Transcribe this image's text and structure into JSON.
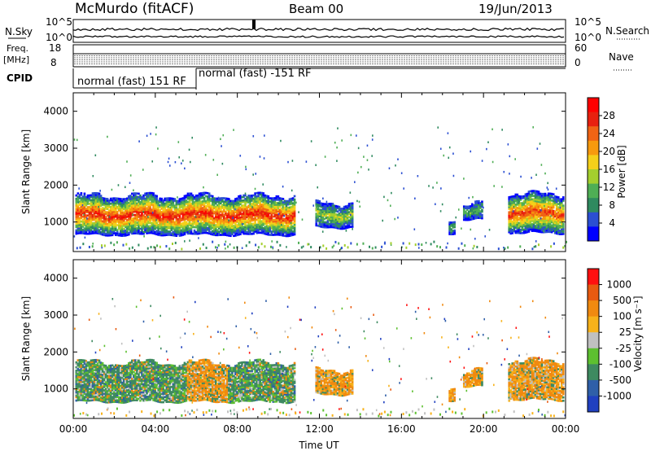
{
  "header": {
    "station": "McMurdo (fitACF)",
    "beam": "Beam 00",
    "date": "19/Jun/2013"
  },
  "summary": {
    "nsky_label": "N.Sky",
    "nsearch_label": "N.Search",
    "noise_ticks_left": [
      "10^5",
      "10^0"
    ],
    "noise_ticks_right": [
      "10^5",
      "10^0"
    ],
    "freq_label_1": "Freq.",
    "freq_label_2": "[MHz]",
    "freq_ticks": [
      "18",
      "8"
    ],
    "nave_ticks": [
      "60",
      "0"
    ],
    "nave_label": "Nave",
    "cpid_label": "CPID",
    "cpid_segments": [
      "normal (fast) 151 RF",
      "normal (fast) -151 RF"
    ]
  },
  "colors": {
    "power": [
      "#0000ff",
      "#2b4fd2",
      "#2f8a5f",
      "#4fae55",
      "#a4cf2e",
      "#f5d01a",
      "#f79a0e",
      "#f06414",
      "#e8210f",
      "#ff0000"
    ],
    "velocity": [
      "#2040c0",
      "#2f5fa8",
      "#3e8a60",
      "#5dc030",
      "#c0c0c0",
      "#f7b21a",
      "#f08a10",
      "#e85a10",
      "#ff1010"
    ]
  },
  "chart_data": [
    {
      "type": "heatmap",
      "panel": "power",
      "xlabel": "",
      "ylabel": "Slant Range [km]",
      "xlim": [
        0,
        24
      ],
      "ylim": [
        200,
        4500
      ],
      "yticks": [
        "4000",
        "3000",
        "2000",
        "1000"
      ],
      "colorbar_label": "Power [dB]",
      "colorbar_ticks": [
        "28",
        "24",
        "20",
        "16",
        "12",
        "8",
        "4"
      ],
      "colorbar_range": [
        0,
        30
      ],
      "echo_regions": [
        {
          "t_start": 0.1,
          "t_end": 10.8,
          "range_min": 650,
          "range_max": 1700,
          "peak_db": 28
        },
        {
          "t_start": 11.8,
          "t_end": 13.6,
          "range_min": 850,
          "range_max": 1500,
          "peak_db": 14
        },
        {
          "t_start": 18.3,
          "t_end": 18.6,
          "range_min": 700,
          "range_max": 1100,
          "peak_db": 10
        },
        {
          "t_start": 19.0,
          "t_end": 19.9,
          "range_min": 1050,
          "range_max": 1450,
          "peak_db": 10
        },
        {
          "t_start": 21.2,
          "t_end": 23.9,
          "range_min": 700,
          "range_max": 1750,
          "peak_db": 26
        }
      ]
    },
    {
      "type": "heatmap",
      "panel": "velocity",
      "xlabel": "Time UT",
      "ylabel": "Slant Range [km]",
      "xlim": [
        0,
        24
      ],
      "ylim": [
        200,
        4500
      ],
      "xticks": [
        "00:00",
        "04:00",
        "08:00",
        "12:00",
        "16:00",
        "20:00",
        "00:00"
      ],
      "yticks": [
        "4000",
        "3000",
        "2000",
        "1000"
      ],
      "colorbar_label": "Velocity [m s⁻¹]",
      "colorbar_ticks": [
        "1000",
        "500",
        "100",
        "25",
        "-25",
        "-100",
        "-500",
        "-1000"
      ],
      "colorbar_range": [
        -1000,
        1000
      ]
    }
  ]
}
